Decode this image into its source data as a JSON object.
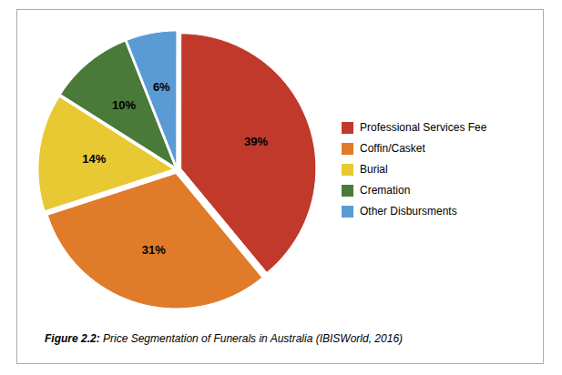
{
  "chart_data": {
    "type": "pie",
    "categories": [
      "Professional Services Fee",
      "Coffin/Casket",
      "Burial",
      "Cremation",
      "Other Disbursments"
    ],
    "values": [
      39,
      31,
      14,
      10,
      6
    ],
    "value_labels": [
      "39%",
      "31%",
      "14%",
      "10%",
      "6%"
    ],
    "colors": [
      "#c0392b",
      "#e07b2a",
      "#e8c933",
      "#4a7a3a",
      "#5b9bd5"
    ],
    "data_labels": true,
    "legend": "right",
    "caption": "Figure 2.2: Price Segmentation of Funerals in Australia (IBISWorld, 2016)"
  }
}
